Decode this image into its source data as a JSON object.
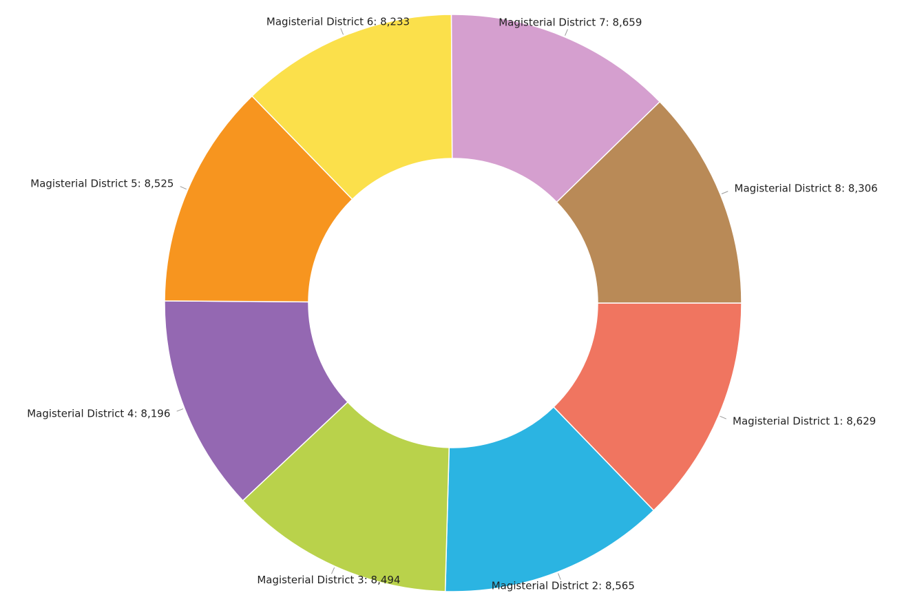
{
  "chart_data": {
    "type": "donut",
    "labels": [
      "Magisterial District 1: 8,629",
      "Magisterial District 2: 8,565",
      "Magisterial District 3: 8,494",
      "Magisterial District 4: 8,196",
      "Magisterial District 5: 8,525",
      "Magisterial District 6: 8,233",
      "Magisterial District 7: 8,659",
      "Magisterial District 8: 8,306"
    ],
    "values": [
      8629,
      8565,
      8494,
      8196,
      8525,
      8233,
      8659,
      8306
    ],
    "colors": [
      "#f07560",
      "#2bb4e2",
      "#b9d24b",
      "#9468b2",
      "#f7951f",
      "#fbe04b",
      "#d59fcf",
      "#b98a57"
    ]
  }
}
